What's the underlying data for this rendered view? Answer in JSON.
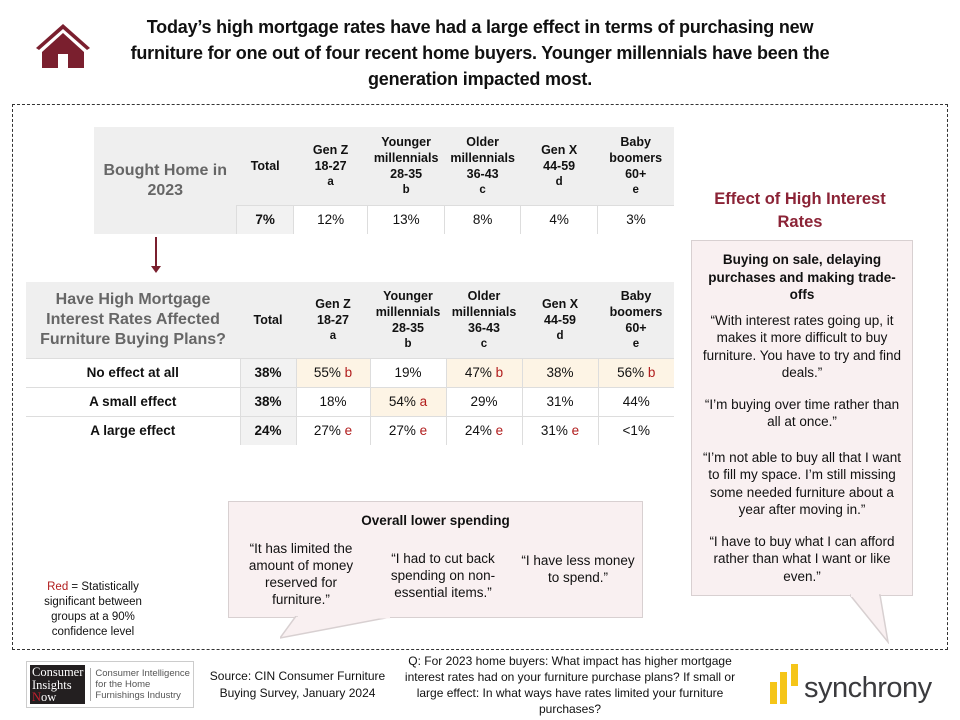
{
  "headline": "Today’s high mortgage rates have had a large effect in terms of purchasing new furniture for one out of four recent home buyers. Younger millennials have been the generation impacted most.",
  "columns": [
    {
      "name": "Total",
      "age": "",
      "letter": ""
    },
    {
      "name": "Gen Z",
      "age": "18-27",
      "letter": "a"
    },
    {
      "name": "Younger millennials",
      "age": "28-35",
      "letter": "b"
    },
    {
      "name": "Older millennials",
      "age": "36-43",
      "letter": "c"
    },
    {
      "name": "Gen X",
      "age": "44-59",
      "letter": "d"
    },
    {
      "name": "Baby boomers",
      "age": "60+",
      "letter": "e"
    }
  ],
  "table1": {
    "title": "Bought Home in 2023",
    "values": [
      "7%",
      "12%",
      "13%",
      "8%",
      "4%",
      "3%"
    ]
  },
  "table2": {
    "title": "Have High Mortgage Interest Rates Affected Furniture Buying Plans?",
    "rows": [
      {
        "label": "No effect at all",
        "cells": [
          {
            "v": "38%",
            "sig": ""
          },
          {
            "v": "55%",
            "sig": "b"
          },
          {
            "v": "19%",
            "sig": ""
          },
          {
            "v": "47%",
            "sig": "b"
          },
          {
            "v": "38%",
            "sig": ""
          },
          {
            "v": "56%",
            "sig": "b"
          }
        ]
      },
      {
        "label": "A small effect",
        "cells": [
          {
            "v": "38%",
            "sig": ""
          },
          {
            "v": "18%",
            "sig": ""
          },
          {
            "v": "54%",
            "sig": "a"
          },
          {
            "v": "29%",
            "sig": ""
          },
          {
            "v": "31%",
            "sig": ""
          },
          {
            "v": "44%",
            "sig": ""
          }
        ]
      },
      {
        "label": "A large effect",
        "cells": [
          {
            "v": "24%",
            "sig": ""
          },
          {
            "v": "27%",
            "sig": "e"
          },
          {
            "v": "27%",
            "sig": "e"
          },
          {
            "v": "24%",
            "sig": "e"
          },
          {
            "v": "31%",
            "sig": "e"
          },
          {
            "v": "<1%",
            "sig": ""
          }
        ]
      }
    ]
  },
  "effect_panel": {
    "title": "Effect of High Interest Rates",
    "theme": "Buying on sale, delaying purchases and making trade-offs",
    "quotes": [
      "“With interest rates going up, it makes it more difficult to buy furniture. You have to try and find deals.”",
      "“I’m buying over time rather than all at once.”",
      "“I’m not able to buy all that I want to fill my space. I’m still missing some needed furniture about a year after moving in.”",
      "“I have to buy what I can afford rather than what I want or like even.”"
    ]
  },
  "spending_panel": {
    "title": "Overall lower spending",
    "quotes": [
      "“It has limited the amount of money reserved for furniture.”",
      "“I had to cut back spending on non-essential items.”",
      "“I have less money to spend.”"
    ]
  },
  "legend": {
    "red_word": "Red",
    "text": " = Statistically significant between groups at a 90% confidence level"
  },
  "cin_logo": {
    "line1": "Consumer",
    "line2": "Insights",
    "line3_n": "N",
    "line3_rest": "ow",
    "tagline": "Consumer Intelligence for the Home Furnishings Industry"
  },
  "source": "Source: CIN Consumer Furniture Buying Survey, January 2024",
  "question": "Q: For 2023 home buyers: What impact has higher mortgage interest rates had on your furniture purchase plans? If small or large effect: In what ways have rates limited your furniture purchases?",
  "synchrony_logo": "synchrony",
  "colors": {
    "accent": "#8b2336",
    "house": "#7a1f2e",
    "highlight": "#fdf4e5",
    "significance": "#b11c1c",
    "bubble": "#f9f0f1",
    "synchrony_yellow": "#f5c518"
  }
}
